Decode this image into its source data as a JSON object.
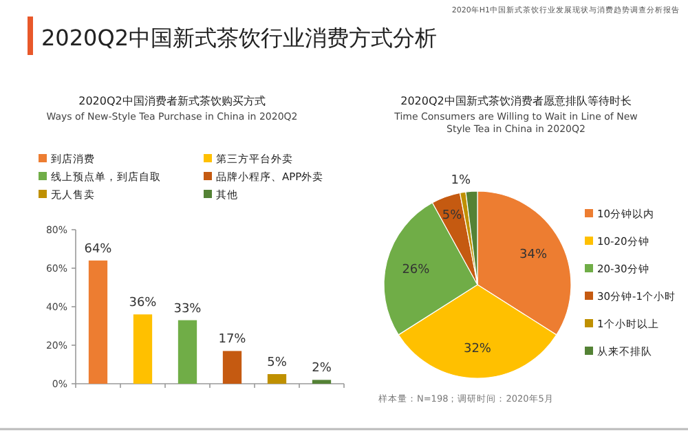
{
  "chart_data": [
    {
      "type": "bar",
      "title": "2020Q2中国消费者新式茶饮购买方式",
      "subtitle": "Ways of New-Style Tea Purchase in China in 2020Q2",
      "annotations": [
        "2020Q2中国新式茶饮行业消费方式分析",
        "2020年H1中国新式茶饮行业发展现状与消费趋势调查分析报告"
      ],
      "categories": [
        null,
        null,
        null,
        null,
        null,
        null
      ],
      "series": [
        {
          "name": "到店消费",
          "color": "#ed7d31",
          "values": [
            64,
            null,
            null,
            null,
            null,
            null
          ],
          "value_labels": [
            "64%",
            null,
            null,
            null,
            null,
            null
          ]
        },
        {
          "name": "第三方平台外卖",
          "color": "#ffc000",
          "values": [
            null,
            36,
            null,
            null,
            null,
            null
          ],
          "value_labels": [
            null,
            "36%",
            null,
            null,
            null,
            null
          ]
        },
        {
          "name": "线上预点单，到店自取",
          "color": "#70ad47",
          "values": [
            null,
            null,
            33,
            null,
            null,
            null
          ],
          "value_labels": [
            null,
            null,
            "33%",
            null,
            null,
            null
          ]
        },
        {
          "name": "品牌小程序、APP外卖",
          "color": "#c55a11",
          "values": [
            null,
            null,
            null,
            17,
            null,
            null
          ],
          "value_labels": [
            null,
            null,
            null,
            "17%",
            null,
            null
          ]
        },
        {
          "name": "无人售卖",
          "color": "#bf9000",
          "values": [
            null,
            null,
            null,
            null,
            5,
            null
          ],
          "value_labels": [
            null,
            null,
            null,
            null,
            "5%",
            null
          ]
        },
        {
          "name": "其他",
          "color": "#548235",
          "values": [
            null,
            null,
            null,
            null,
            null,
            2
          ],
          "value_labels": [
            null,
            null,
            null,
            null,
            null,
            "2%"
          ]
        }
      ],
      "ylim": [
        0,
        80
      ],
      "yticks": [
        {
          "value": 0,
          "label": "0%"
        },
        {
          "value": 20,
          "label": "20%"
        },
        {
          "value": 40,
          "label": "40%"
        },
        {
          "value": 60,
          "label": "60%"
        },
        {
          "value": 80,
          "label": "80%"
        }
      ],
      "legend": "top",
      "grid": false
    },
    {
      "type": "pie",
      "title": "2020Q2中国新式茶饮消费者愿意排队等待时长",
      "subtitle": "Time Consumers are Willing to Wait in Line of New Style Tea in China in 2020Q2",
      "categories": [
        "10分钟以内",
        "10-20分钟",
        "20-30分钟",
        "30分钟-1个小时",
        "1个小时以上",
        "从来不排队"
      ],
      "values": [
        34,
        32,
        26,
        5,
        1,
        2
      ],
      "colors": [
        "#ed7d31",
        "#ffc000",
        "#70ad47",
        "#c55a11",
        "#bf9000",
        "#548235"
      ],
      "value_labels": [
        "34%",
        "32%",
        "26%",
        "5%",
        "1%",
        null
      ],
      "legend": "right",
      "annotations": [
        "样本量：N=198；调研时间：2020年5月"
      ]
    }
  ]
}
